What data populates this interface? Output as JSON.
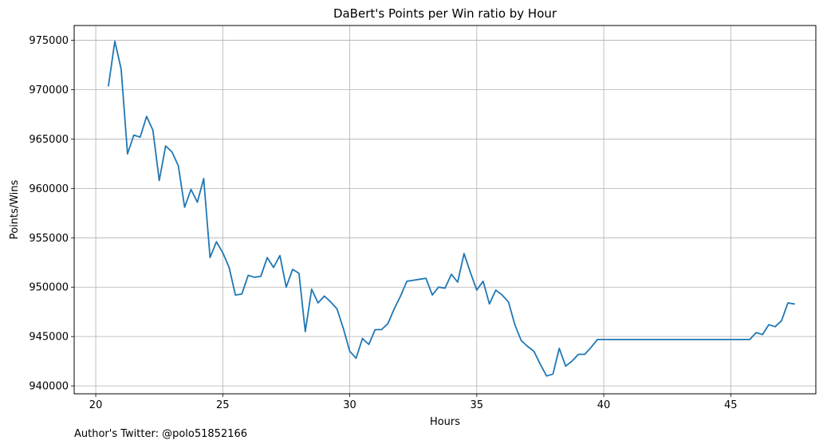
{
  "footnote": "Author's Twitter: @polo51852166",
  "chart_data": {
    "type": "line",
    "title": "DaBert's Points per Win ratio by Hour",
    "xlabel": "Hours",
    "ylabel": "Points/Wins",
    "xlim": [
      19.15,
      48.35
    ],
    "ylim": [
      939200,
      976500
    ],
    "xticks": [
      20,
      25,
      30,
      35,
      40,
      45
    ],
    "yticks": [
      940000,
      945000,
      950000,
      955000,
      960000,
      965000,
      970000,
      975000
    ],
    "grid": true,
    "color": "#1f77b4",
    "series": [
      {
        "x": [
          20.5,
          20.75,
          21.0,
          21.25,
          21.5,
          21.75,
          22.0,
          22.25,
          22.5,
          22.75,
          23.0,
          23.25,
          23.5,
          23.75,
          24.0,
          24.25,
          24.5,
          24.75,
          25.0,
          25.25,
          25.5,
          25.75,
          26.0,
          26.25,
          26.5,
          26.75,
          27.0,
          27.25,
          27.5,
          27.75,
          28.0,
          28.25,
          28.5,
          28.75,
          29.0,
          29.25,
          29.5,
          29.75,
          30.0,
          30.25,
          30.5,
          30.75,
          31.0,
          31.25,
          31.5,
          31.75,
          32.0,
          32.25,
          32.5,
          32.75,
          33.0,
          33.25,
          33.5,
          33.75,
          34.0,
          34.25,
          34.5,
          34.75,
          35.0,
          35.25,
          35.5,
          35.75,
          36.0,
          36.25,
          36.5,
          36.75,
          37.0,
          37.25,
          37.5,
          37.75,
          38.0,
          38.25,
          38.5,
          38.75,
          39.0,
          39.25,
          39.5,
          39.75,
          40.0,
          45.75,
          46.0,
          46.25,
          46.5,
          46.75,
          47.0,
          47.25,
          47.5
        ],
        "y": [
          970400,
          974900,
          972100,
          963500,
          965400,
          965200,
          967300,
          965900,
          960800,
          964300,
          963700,
          962300,
          958100,
          959900,
          958600,
          961000,
          953000,
          954600,
          953500,
          952000,
          949200,
          949300,
          951200,
          951000,
          951100,
          953000,
          952000,
          953200,
          950000,
          951800,
          951400,
          945500,
          949800,
          948400,
          949100,
          948500,
          947800,
          945800,
          943500,
          942800,
          944800,
          944200,
          945700,
          945700,
          946300,
          947800,
          949100,
          950600,
          950700,
          950800,
          950900,
          949200,
          950000,
          949900,
          951300,
          950500,
          953400,
          951500,
          949700,
          950600,
          948300,
          949700,
          949200,
          948500,
          946200,
          944600,
          944000,
          943500,
          942200,
          941000,
          941200,
          943800,
          942000,
          942500,
          943200,
          943200,
          943900,
          944700,
          944700,
          944700,
          945400,
          945200,
          946200,
          946000,
          946600,
          948400,
          948300
        ]
      }
    ]
  }
}
